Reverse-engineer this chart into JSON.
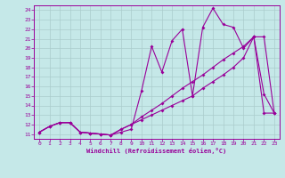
{
  "xlabel": "Windchill (Refroidissement éolien,°C)",
  "bg_color": "#c5e8e8",
  "line_color": "#990099",
  "grid_color": "#aacccc",
  "xlim": [
    -0.5,
    23.5
  ],
  "ylim": [
    10.5,
    24.5
  ],
  "yticks": [
    11,
    12,
    13,
    14,
    15,
    16,
    17,
    18,
    19,
    20,
    21,
    22,
    23,
    24
  ],
  "xticks": [
    0,
    1,
    2,
    3,
    4,
    5,
    6,
    7,
    8,
    9,
    10,
    11,
    12,
    13,
    14,
    15,
    16,
    17,
    18,
    19,
    20,
    21,
    22,
    23
  ],
  "line1_x": [
    0,
    1,
    2,
    3,
    4,
    5,
    6,
    7,
    8,
    9,
    10,
    11,
    12,
    13,
    14,
    15,
    16,
    17,
    18,
    19,
    20,
    21,
    22,
    23
  ],
  "line1_y": [
    11.2,
    11.8,
    12.2,
    12.2,
    11.2,
    11.1,
    11.0,
    10.9,
    11.5,
    12.0,
    12.8,
    13.5,
    14.2,
    15.0,
    15.8,
    16.5,
    17.2,
    18.0,
    18.8,
    19.5,
    20.2,
    21.2,
    21.2,
    13.2
  ],
  "line2_x": [
    0,
    1,
    2,
    3,
    4,
    5,
    6,
    7,
    8,
    9,
    10,
    11,
    12,
    13,
    14,
    15,
    16,
    17,
    18,
    19,
    20,
    21,
    22,
    23
  ],
  "line2_y": [
    11.2,
    11.8,
    12.2,
    12.2,
    11.2,
    11.1,
    11.0,
    10.9,
    11.2,
    11.5,
    15.5,
    20.2,
    17.5,
    20.8,
    22.0,
    15.0,
    22.2,
    24.2,
    22.5,
    22.2,
    20.0,
    21.2,
    15.2,
    13.2
  ],
  "line3_x": [
    0,
    1,
    2,
    3,
    4,
    5,
    6,
    7,
    8,
    9,
    10,
    11,
    12,
    13,
    14,
    15,
    16,
    17,
    18,
    19,
    20,
    21,
    22,
    23
  ],
  "line3_y": [
    11.2,
    11.8,
    12.2,
    12.2,
    11.2,
    11.1,
    11.0,
    10.9,
    11.5,
    12.0,
    12.5,
    13.0,
    13.5,
    14.0,
    14.5,
    15.0,
    15.8,
    16.5,
    17.2,
    18.0,
    19.0,
    21.2,
    13.2,
    13.2
  ]
}
